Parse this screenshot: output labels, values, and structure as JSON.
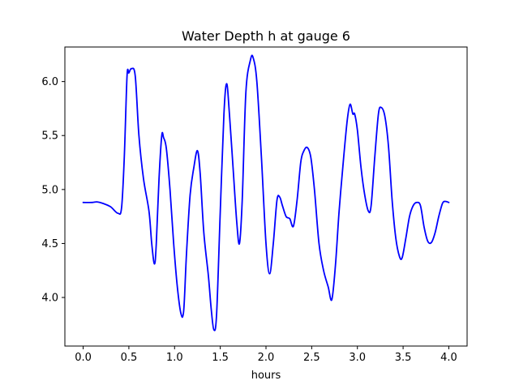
{
  "chart_data": {
    "type": "line",
    "title": "Water Depth h at gauge 6",
    "xlabel": "hours",
    "ylabel": "",
    "xlim": [
      -0.2,
      4.2
    ],
    "ylim": [
      3.55,
      6.32
    ],
    "grid": false,
    "x_ticks": [
      0.0,
      0.5,
      1.0,
      1.5,
      2.0,
      2.5,
      3.0,
      3.5,
      4.0
    ],
    "x_tick_labels": [
      "0.0",
      "0.5",
      "1.0",
      "1.5",
      "2.0",
      "2.5",
      "3.0",
      "3.5",
      "4.0"
    ],
    "y_ticks": [
      4.0,
      4.5,
      5.0,
      5.5,
      6.0
    ],
    "y_tick_labels": [
      "4.0",
      "4.5",
      "5.0",
      "5.5",
      "6.0"
    ],
    "line_color": "#0000ff",
    "series": [
      {
        "values": [
          [
            0.0,
            4.88
          ],
          [
            0.1,
            4.88
          ],
          [
            0.15,
            4.885
          ],
          [
            0.22,
            4.87
          ],
          [
            0.3,
            4.84
          ],
          [
            0.38,
            4.78
          ],
          [
            0.42,
            4.83
          ],
          [
            0.45,
            5.3
          ],
          [
            0.48,
            6.05
          ],
          [
            0.5,
            6.08
          ],
          [
            0.53,
            6.12
          ],
          [
            0.57,
            6.05
          ],
          [
            0.61,
            5.5
          ],
          [
            0.66,
            5.1
          ],
          [
            0.72,
            4.8
          ],
          [
            0.75,
            4.5
          ],
          [
            0.78,
            4.31
          ],
          [
            0.8,
            4.5
          ],
          [
            0.83,
            5.1
          ],
          [
            0.86,
            5.5
          ],
          [
            0.88,
            5.48
          ],
          [
            0.91,
            5.38
          ],
          [
            0.95,
            5.0
          ],
          [
            0.99,
            4.5
          ],
          [
            1.03,
            4.1
          ],
          [
            1.07,
            3.85
          ],
          [
            1.1,
            3.88
          ],
          [
            1.13,
            4.4
          ],
          [
            1.17,
            4.95
          ],
          [
            1.21,
            5.2
          ],
          [
            1.25,
            5.36
          ],
          [
            1.28,
            5.15
          ],
          [
            1.32,
            4.6
          ],
          [
            1.37,
            4.2
          ],
          [
            1.4,
            3.9
          ],
          [
            1.43,
            3.7
          ],
          [
            1.46,
            3.85
          ],
          [
            1.5,
            4.8
          ],
          [
            1.54,
            5.7
          ],
          [
            1.57,
            5.98
          ],
          [
            1.6,
            5.7
          ],
          [
            1.64,
            5.2
          ],
          [
            1.68,
            4.7
          ],
          [
            1.71,
            4.5
          ],
          [
            1.74,
            4.9
          ],
          [
            1.78,
            5.9
          ],
          [
            1.83,
            6.2
          ],
          [
            1.86,
            6.22
          ],
          [
            1.9,
            6.0
          ],
          [
            1.95,
            5.3
          ],
          [
            2.0,
            4.5
          ],
          [
            2.04,
            4.22
          ],
          [
            2.08,
            4.5
          ],
          [
            2.12,
            4.9
          ],
          [
            2.15,
            4.93
          ],
          [
            2.18,
            4.85
          ],
          [
            2.22,
            4.75
          ],
          [
            2.26,
            4.73
          ],
          [
            2.3,
            4.66
          ],
          [
            2.34,
            4.9
          ],
          [
            2.38,
            5.25
          ],
          [
            2.41,
            5.35
          ],
          [
            2.45,
            5.39
          ],
          [
            2.49,
            5.3
          ],
          [
            2.53,
            5.0
          ],
          [
            2.58,
            4.5
          ],
          [
            2.63,
            4.25
          ],
          [
            2.68,
            4.1
          ],
          [
            2.72,
            3.98
          ],
          [
            2.76,
            4.3
          ],
          [
            2.8,
            4.8
          ],
          [
            2.85,
            5.3
          ],
          [
            2.89,
            5.65
          ],
          [
            2.92,
            5.79
          ],
          [
            2.95,
            5.7
          ],
          [
            2.97,
            5.7
          ],
          [
            3.0,
            5.55
          ],
          [
            3.04,
            5.2
          ],
          [
            3.08,
            4.95
          ],
          [
            3.12,
            4.8
          ],
          [
            3.15,
            4.85
          ],
          [
            3.19,
            5.3
          ],
          [
            3.23,
            5.7
          ],
          [
            3.26,
            5.76
          ],
          [
            3.3,
            5.68
          ],
          [
            3.34,
            5.4
          ],
          [
            3.38,
            4.9
          ],
          [
            3.42,
            4.55
          ],
          [
            3.46,
            4.38
          ],
          [
            3.49,
            4.37
          ],
          [
            3.53,
            4.55
          ],
          [
            3.57,
            4.75
          ],
          [
            3.61,
            4.85
          ],
          [
            3.65,
            4.88
          ],
          [
            3.69,
            4.85
          ],
          [
            3.73,
            4.65
          ],
          [
            3.77,
            4.52
          ],
          [
            3.81,
            4.51
          ],
          [
            3.85,
            4.6
          ],
          [
            3.89,
            4.75
          ],
          [
            3.93,
            4.87
          ],
          [
            3.96,
            4.89
          ],
          [
            4.0,
            4.88
          ]
        ]
      }
    ]
  }
}
